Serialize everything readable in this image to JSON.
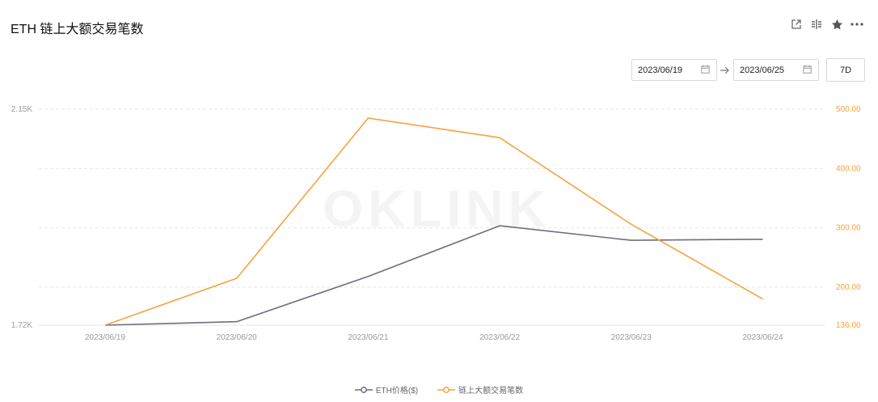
{
  "header": {
    "title": "ETH 链上大额交易笔数"
  },
  "toolbar": {
    "icons": [
      "share-icon",
      "split-icon",
      "star-icon",
      "more-icon"
    ]
  },
  "range": {
    "start": "2023/06/19",
    "end": "2023/06/25",
    "preset": "7D"
  },
  "colors": {
    "eth": "#6f6c80",
    "count": "#f7a23c",
    "grid": "#e6e6e6",
    "axis_text": "#9a9a9a"
  },
  "chart_data": {
    "type": "line",
    "watermark": "OKLINK",
    "x": [
      "2023/06/19",
      "2023/06/20",
      "2023/06/21",
      "2023/06/22",
      "2023/06/23",
      "2023/06/24"
    ],
    "left_axis": {
      "ticks": [
        "2.15K",
        "1.72K"
      ],
      "range": [
        1720,
        2150
      ]
    },
    "right_axis": {
      "ticks": [
        "500.00",
        "400.00",
        "300.00",
        "200.00",
        "136.00"
      ],
      "range": [
        136,
        500
      ]
    },
    "series": [
      {
        "name": "ETH价格($)",
        "axis": "left",
        "values": [
          1720,
          1727,
          1817,
          1918,
          1889,
          1891
        ]
      },
      {
        "name": "链上大额交易笔数",
        "axis": "right",
        "values": [
          136,
          215,
          485,
          452,
          306,
          180
        ]
      }
    ],
    "legend_position": "bottom"
  }
}
